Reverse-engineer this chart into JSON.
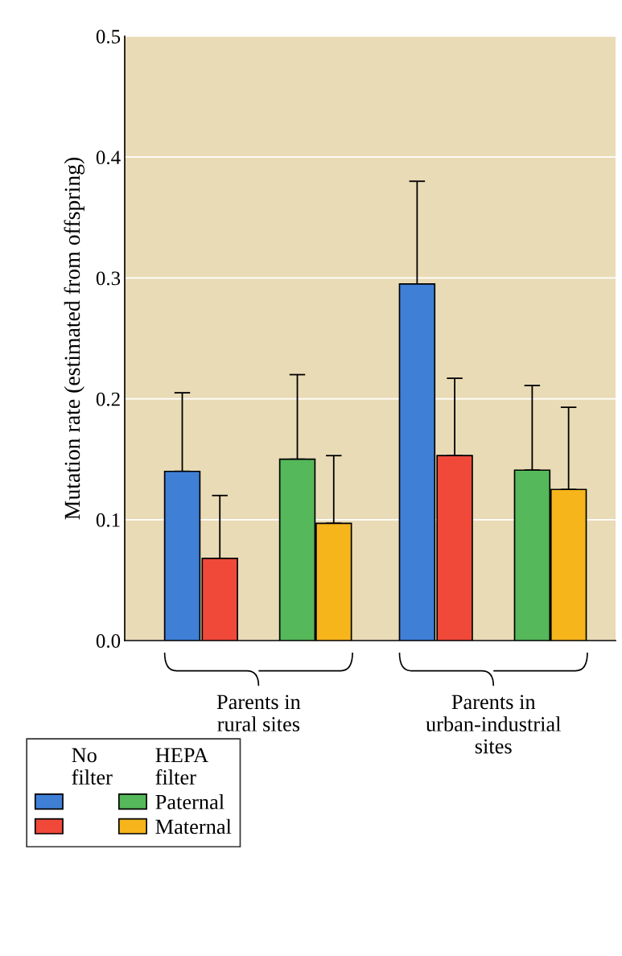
{
  "chart_data": {
    "type": "bar",
    "ylabel": "Mutation rate (estimated from offspring)",
    "categories": [
      "Parents in\nrural sites",
      "Parents in\nurban-industrial\nsites"
    ],
    "series": [
      {
        "color": "#3f7fd6",
        "values": [
          0.14,
          0.295
        ],
        "errors": [
          [
            0.14,
            0.205
          ],
          [
            0.295,
            0.38
          ]
        ]
      },
      {
        "color": "#f0493a",
        "values": [
          0.068,
          0.153
        ],
        "errors": [
          [
            0.068,
            0.12
          ],
          [
            0.153,
            0.217
          ]
        ]
      },
      {
        "name": "Paternal",
        "color": "#55b85a",
        "values": [
          0.15,
          0.141
        ],
        "errors": [
          [
            0.15,
            0.22
          ],
          [
            0.141,
            0.211
          ]
        ]
      },
      {
        "name": "Maternal",
        "color": "#f7b51c",
        "values": [
          0.097,
          0.125
        ],
        "errors": [
          [
            0.097,
            0.153
          ],
          [
            0.125,
            0.193
          ]
        ]
      }
    ],
    "ylim": [
      0,
      0.5
    ],
    "yticks": [
      {
        "value": 0,
        "label": "0.0"
      },
      0.1,
      0.2,
      0.3,
      0.4,
      0.5
    ],
    "grid": "y",
    "legend": "bottom left",
    "annotations": [
      "No\nfilter",
      "HEPA\nfilter"
    ]
  }
}
